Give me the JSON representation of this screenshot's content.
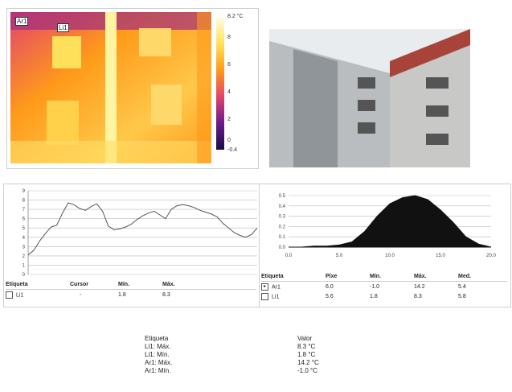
{
  "thermal": {
    "tags": [
      "Ar1",
      "Li1"
    ],
    "scale_max": "8.2 °C",
    "scale_ticks": [
      "8",
      "6",
      "4",
      "2",
      "0"
    ],
    "scale_min": "-0.4",
    "colors": [
      "#fffde8",
      "#ffe45a",
      "#ff9a1a",
      "#e2436d",
      "#6a1b8a",
      "#1a0d4a"
    ]
  },
  "line_chart": {
    "chart_data": {
      "type": "line",
      "x": [
        0,
        1,
        2,
        3,
        4,
        5,
        6,
        7,
        8,
        9,
        10,
        11,
        12,
        13,
        14,
        15,
        16,
        17,
        18,
        19,
        20,
        21,
        22,
        23,
        24,
        25,
        26,
        27,
        28,
        29,
        30,
        31,
        32,
        33,
        34,
        35,
        36,
        37,
        38,
        39,
        40
      ],
      "values": [
        2.1,
        2.6,
        3.6,
        4.4,
        5.1,
        5.3,
        6.6,
        7.7,
        7.5,
        7.1,
        6.9,
        7.3,
        7.6,
        6.8,
        5.2,
        4.8,
        4.9,
        5.1,
        5.4,
        5.9,
        6.3,
        6.6,
        6.8,
        6.4,
        6.0,
        7.0,
        7.4,
        7.5,
        7.4,
        7.2,
        6.9,
        6.7,
        6.5,
        6.2,
        5.5,
        5.0,
        4.5,
        4.2,
        4.0,
        4.3,
        5.0
      ],
      "ylim": [
        0,
        9
      ],
      "y_ticks": [
        "9",
        "8",
        "7",
        "6",
        "5",
        "4",
        "3",
        "2",
        "1",
        "0"
      ],
      "grid": true
    },
    "table": {
      "headers": [
        "Etiqueta",
        "Cursor",
        "Mín.",
        "Máx."
      ],
      "rows": [
        [
          "Li1",
          "-",
          "1.8",
          "8.3"
        ]
      ]
    }
  },
  "histogram": {
    "chart_data": {
      "type": "area",
      "x": [
        -2,
        -1,
        0,
        1,
        2,
        3,
        4,
        5,
        6,
        7,
        8,
        9,
        10,
        11,
        12,
        13,
        14
      ],
      "values": [
        0.0,
        0.0,
        0.01,
        0.01,
        0.02,
        0.05,
        0.15,
        0.3,
        0.42,
        0.48,
        0.5,
        0.46,
        0.36,
        0.24,
        0.1,
        0.03,
        0.0
      ],
      "ylim": [
        0,
        0.5
      ],
      "y_ticks": [
        "0.5",
        "0.4",
        "0.3",
        "0.2",
        "0.1",
        "0.0"
      ],
      "x_ticks": [
        "0.0",
        "5.0",
        "10.0",
        "15.0",
        "20.0"
      ],
      "grid": true
    },
    "table": {
      "headers": [
        "Etiqueta",
        "Píxe",
        "Mín.",
        "Máx.",
        "Med."
      ],
      "rows": [
        [
          "Ar1",
          "6.0",
          "-1.0",
          "14.2",
          "5.4"
        ],
        [
          "Li1",
          "5.6",
          "1.8",
          "8.3",
          "5.8"
        ]
      ]
    }
  },
  "summary": {
    "headers": [
      "Etiqueta",
      "Valor"
    ],
    "rows": [
      [
        "Li1: Máx.",
        "8.3 °C"
      ],
      [
        "Li1: Mín.",
        "1.8 °C"
      ],
      [
        "Ar1: Máx.",
        "14.2 °C"
      ],
      [
        "Ar1: Mín.",
        "-1.0 °C"
      ]
    ]
  }
}
